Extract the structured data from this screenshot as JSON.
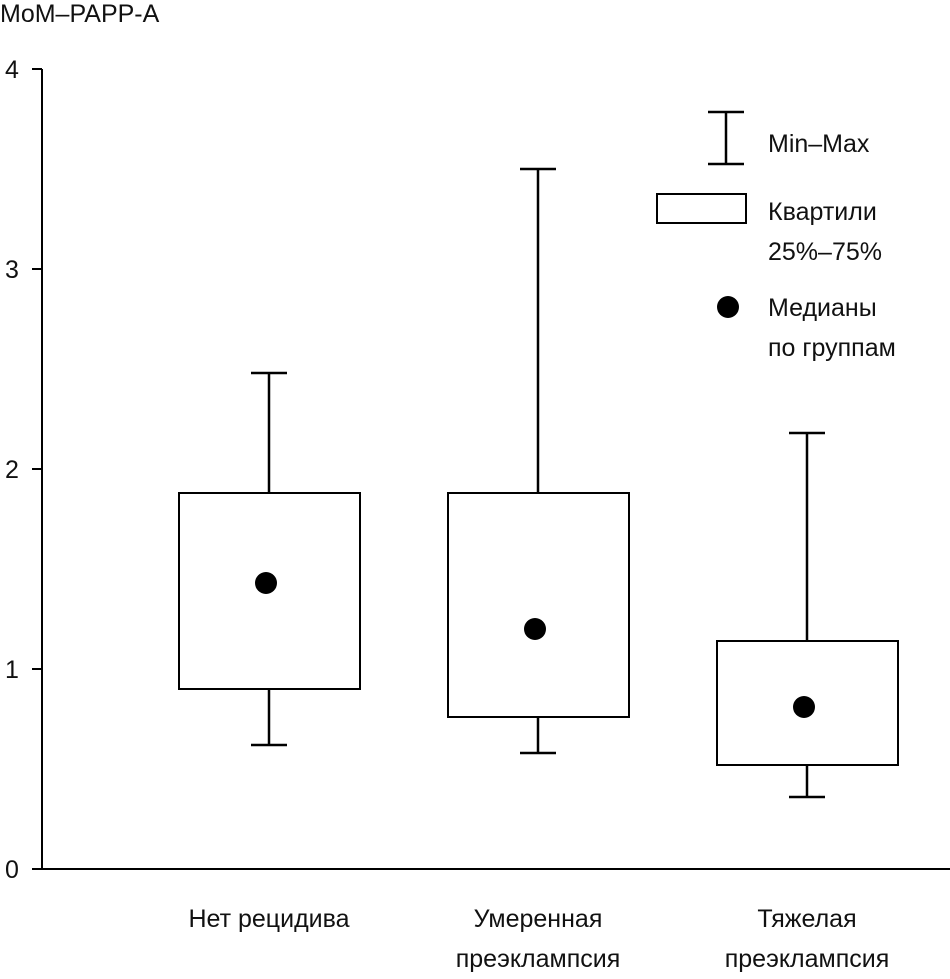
{
  "chart_data": {
    "type": "box",
    "y_label": "MoM–PAPP-A",
    "categories": [
      "Нет рецидива",
      "Умеренная\nпреэклампсия",
      "Тяжелая\nпреэклампсия"
    ],
    "min": [
      0.62,
      0.58,
      0.36
    ],
    "q1": [
      0.9,
      0.76,
      0.52
    ],
    "median": [
      1.43,
      1.2,
      0.81
    ],
    "q3": [
      1.88,
      1.88,
      1.14
    ],
    "max": [
      2.48,
      3.5,
      2.18
    ],
    "ylim": [
      0,
      4
    ],
    "yticks": [
      0,
      1,
      2,
      3,
      4
    ],
    "color": "#000000",
    "legend": {
      "range": "Min–Max",
      "box": "Квартили\n25%–75%",
      "median": "Медианы\nпо группам"
    }
  }
}
